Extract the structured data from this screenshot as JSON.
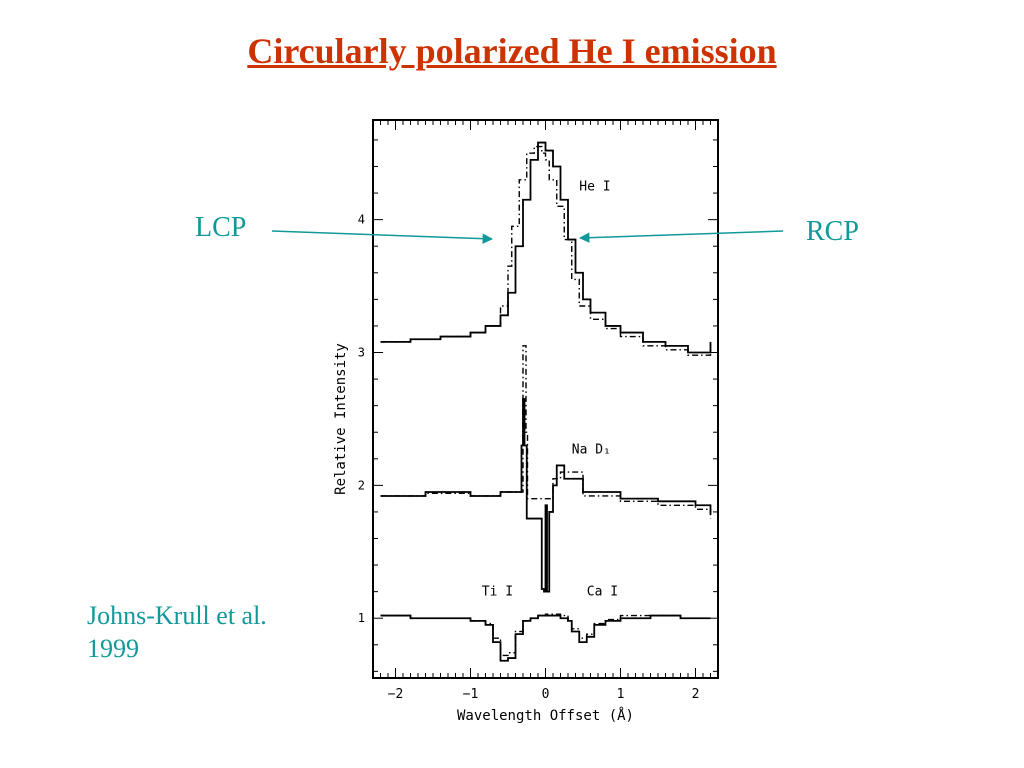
{
  "slide": {
    "title": "Circularly polarized He I emission",
    "lcp_label": "LCP",
    "rcp_label": "RCP",
    "credit_line1": "Johns-Krull et al.",
    "credit_line2": "1999",
    "text_color": "#119999",
    "title_color": "#cc3300"
  },
  "chart_data": {
    "type": "line",
    "title": "",
    "xlabel": "Wavelength Offset (Å)",
    "ylabel": "Relative Intensity",
    "xlim": [
      -2.3,
      2.3
    ],
    "ylim": [
      0.55,
      4.75
    ],
    "xticks": [
      -2,
      -1,
      0,
      1,
      2
    ],
    "yticks": [
      1,
      2,
      3,
      4
    ],
    "line_labels": [
      {
        "text": "He I",
        "x": 0.45,
        "y": 4.22
      },
      {
        "text": "Na D₁",
        "x": 0.35,
        "y": 2.24
      },
      {
        "text": "Ti I",
        "x": -0.85,
        "y": 1.17
      },
      {
        "text": "Ca I",
        "x": 0.55,
        "y": 1.17
      }
    ],
    "series": [
      {
        "name": "",
        "style": "solid",
        "profiles": [
          {
            "x": [
              -2.2,
              -1.8,
              -1.4,
              -1.0,
              -0.8,
              -0.6,
              -0.5,
              -0.4,
              -0.3,
              -0.2,
              -0.1,
              0.0,
              0.1,
              0.2,
              0.3,
              0.4,
              0.5,
              0.6,
              0.8,
              1.0,
              1.3,
              1.6,
              1.9,
              2.2
            ],
            "y": [
              3.08,
              3.1,
              3.12,
              3.15,
              3.2,
              3.28,
              3.45,
              3.8,
              4.15,
              4.45,
              4.58,
              4.52,
              4.4,
              4.15,
              3.85,
              3.6,
              3.4,
              3.3,
              3.2,
              3.15,
              3.08,
              3.05,
              3.0,
              3.08
            ]
          },
          {
            "x": [
              -2.2,
              -1.6,
              -1.0,
              -0.6,
              -0.35,
              -0.32,
              -0.3,
              -0.28,
              -0.25,
              -0.1,
              -0.05,
              -0.02,
              0.0,
              0.02,
              0.05,
              0.1,
              0.15,
              0.25,
              0.5,
              1.0,
              1.5,
              2.0,
              2.2
            ],
            "y": [
              1.92,
              1.95,
              1.92,
              1.95,
              1.95,
              2.3,
              2.65,
              2.3,
              1.75,
              1.75,
              1.22,
              1.2,
              1.85,
              1.2,
              1.8,
              2.0,
              2.15,
              2.05,
              1.95,
              1.9,
              1.88,
              1.85,
              1.78
            ]
          },
          {
            "x": [
              -2.2,
              -1.8,
              -1.4,
              -1.0,
              -0.8,
              -0.7,
              -0.6,
              -0.5,
              -0.4,
              -0.3,
              -0.2,
              -0.1,
              0.0,
              0.2,
              0.3,
              0.35,
              0.45,
              0.55,
              0.65,
              0.8,
              1.0,
              1.4,
              1.8,
              2.2
            ],
            "y": [
              1.02,
              1.0,
              1.0,
              0.98,
              0.95,
              0.82,
              0.68,
              0.7,
              0.88,
              0.98,
              1.0,
              1.02,
              1.02,
              1.0,
              0.98,
              0.9,
              0.82,
              0.86,
              0.95,
              0.98,
              1.0,
              1.02,
              1.0,
              1.0
            ]
          }
        ]
      },
      {
        "name": "",
        "style": "dashdot",
        "profiles": [
          {
            "x": [
              -2.2,
              -1.8,
              -1.4,
              -1.0,
              -0.8,
              -0.6,
              -0.5,
              -0.45,
              -0.35,
              -0.25,
              -0.15,
              -0.05,
              0.0,
              0.05,
              0.15,
              0.25,
              0.35,
              0.45,
              0.6,
              0.8,
              1.0,
              1.3,
              1.6,
              1.9,
              2.2
            ],
            "y": [
              3.08,
              3.1,
              3.12,
              3.15,
              3.2,
              3.35,
              3.65,
              3.95,
              4.3,
              4.5,
              4.55,
              4.5,
              4.45,
              4.3,
              4.1,
              3.85,
              3.55,
              3.35,
              3.25,
              3.18,
              3.12,
              3.05,
              3.02,
              2.98,
              3.06
            ]
          },
          {
            "x": [
              -2.2,
              -1.6,
              -1.0,
              -0.6,
              -0.32,
              -0.3,
              -0.28,
              -0.26,
              -0.24,
              0.1,
              0.2,
              0.5,
              1.0,
              1.5,
              2.0,
              2.2
            ],
            "y": [
              1.92,
              1.94,
              1.92,
              1.95,
              1.95,
              3.05,
              3.05,
              2.4,
              1.9,
              2.05,
              2.1,
              1.92,
              1.88,
              1.85,
              1.82,
              1.75
            ]
          },
          {
            "x": [
              -2.2,
              -1.8,
              -1.4,
              -1.0,
              -0.8,
              -0.7,
              -0.6,
              -0.5,
              -0.4,
              -0.3,
              -0.2,
              -0.1,
              0.0,
              0.2,
              0.3,
              0.35,
              0.45,
              0.55,
              0.65,
              0.8,
              1.0,
              1.4,
              1.8,
              2.2
            ],
            "y": [
              1.02,
              1.0,
              1.0,
              0.98,
              0.96,
              0.85,
              0.72,
              0.74,
              0.9,
              0.98,
              1.0,
              1.02,
              1.03,
              1.02,
              0.98,
              0.92,
              0.85,
              0.88,
              0.96,
              0.99,
              1.02,
              1.02,
              1.0,
              1.0
            ]
          }
        ]
      }
    ]
  }
}
